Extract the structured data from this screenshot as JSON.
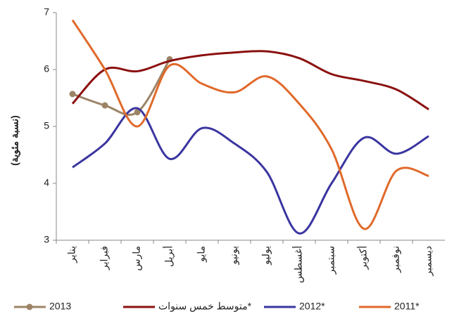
{
  "chart_data": {
    "type": "line",
    "y_label": "(نسبة مئوية)",
    "categories": [
      "يناير",
      "فبراير",
      "مارس",
      "أبريل",
      "مايو",
      "يونيو",
      "يوليو",
      "أغسطس",
      "سبتمبر",
      "أكتوبر",
      "نوفمبر",
      "ديسمبر"
    ],
    "series": [
      {
        "name": "2013",
        "color": "#9c8466",
        "markers": true,
        "values": [
          5.57,
          5.37,
          5.25,
          6.18,
          null,
          null,
          null,
          null,
          null,
          null,
          null,
          null
        ]
      },
      {
        "name": "متوسط خمس سنوات*",
        "color": "#8b1010",
        "values": [
          5.4,
          6.0,
          5.97,
          6.15,
          6.25,
          6.3,
          6.32,
          6.2,
          5.92,
          5.8,
          5.65,
          5.3
        ]
      },
      {
        "name": "2012*",
        "color": "#3a35a0",
        "values": [
          4.28,
          4.7,
          5.32,
          4.43,
          4.97,
          4.7,
          4.2,
          3.12,
          4.0,
          4.8,
          4.52,
          4.83
        ]
      },
      {
        "name": "2011*",
        "color": "#e0692a",
        "values": [
          6.87,
          6.0,
          5.0,
          6.07,
          5.75,
          5.6,
          5.88,
          5.4,
          4.6,
          3.2,
          4.22,
          4.13
        ]
      }
    ],
    "ylim": [
      3,
      7
    ],
    "yticks": [
      3,
      4,
      5,
      6,
      7
    ],
    "grid": false,
    "legend": "bottom"
  }
}
